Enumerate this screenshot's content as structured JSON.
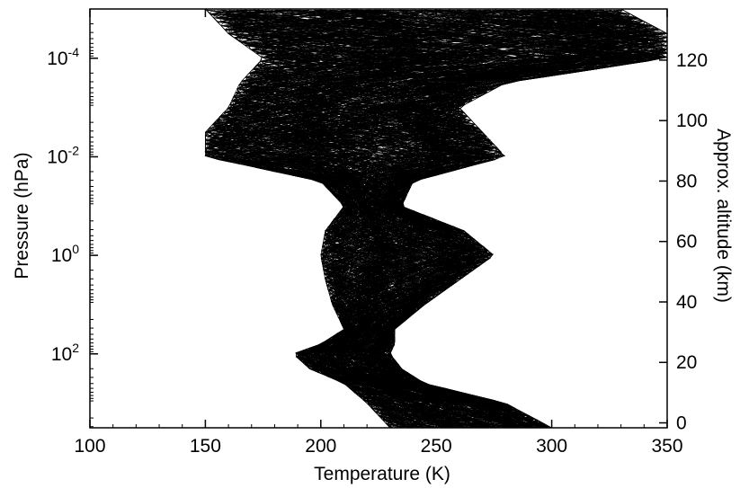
{
  "chart_data": {
    "type": "line",
    "title": "",
    "xlabel": "Temperature (K)",
    "ylabel": "Pressure (hPa)",
    "y2label": "Approx. altitude (km)",
    "xlim": [
      100,
      350
    ],
    "ylim_log10": [
      3.5,
      -5.0
    ],
    "y_scale": "log",
    "x_ticks": [
      "100",
      "150",
      "200",
      "250",
      "300",
      "350"
    ],
    "y_ticks": [
      {
        "base": "10",
        "exp": "-4"
      },
      {
        "base": "10",
        "exp": "-2"
      },
      {
        "base": "10",
        "exp": "0"
      },
      {
        "base": "10",
        "exp": "2"
      }
    ],
    "y2_ticks": [
      "0",
      "20",
      "40",
      "60",
      "80",
      "100",
      "120"
    ],
    "colors": {
      "line": "#000000",
      "axis": "#000000",
      "background": "#ffffff"
    },
    "grid": false,
    "legend": "none",
    "series_description_count": 400,
    "envelope": [
      {
        "pressure_log10": 3.5,
        "tmin": 230,
        "tmax": 300
      },
      {
        "pressure_log10": 3.0,
        "tmin": 220,
        "tmax": 280
      },
      {
        "pressure_log10": 2.6,
        "tmin": 210,
        "tmax": 245
      },
      {
        "pressure_log10": 2.3,
        "tmin": 195,
        "tmax": 235
      },
      {
        "pressure_log10": 2.0,
        "tmin": 188,
        "tmax": 230
      },
      {
        "pressure_log10": 1.8,
        "tmin": 200,
        "tmax": 232
      },
      {
        "pressure_log10": 1.5,
        "tmin": 210,
        "tmax": 232
      },
      {
        "pressure_log10": 1.0,
        "tmin": 205,
        "tmax": 245
      },
      {
        "pressure_log10": 0.5,
        "tmin": 202,
        "tmax": 260
      },
      {
        "pressure_log10": 0.0,
        "tmin": 200,
        "tmax": 275
      },
      {
        "pressure_log10": -0.5,
        "tmin": 202,
        "tmax": 262
      },
      {
        "pressure_log10": -1.0,
        "tmin": 210,
        "tmax": 235
      },
      {
        "pressure_log10": -1.5,
        "tmin": 200,
        "tmax": 240
      },
      {
        "pressure_log10": -2.0,
        "tmin": 150,
        "tmax": 280
      },
      {
        "pressure_log10": -2.5,
        "tmin": 150,
        "tmax": 270
      },
      {
        "pressure_log10": -3.0,
        "tmin": 160,
        "tmax": 260
      },
      {
        "pressure_log10": -3.5,
        "tmin": 165,
        "tmax": 280
      },
      {
        "pressure_log10": -4.0,
        "tmin": 175,
        "tmax": 350
      },
      {
        "pressure_log10": -4.5,
        "tmin": 160,
        "tmax": 350
      },
      {
        "pressure_log10": -5.0,
        "tmin": 150,
        "tmax": 330
      }
    ]
  }
}
